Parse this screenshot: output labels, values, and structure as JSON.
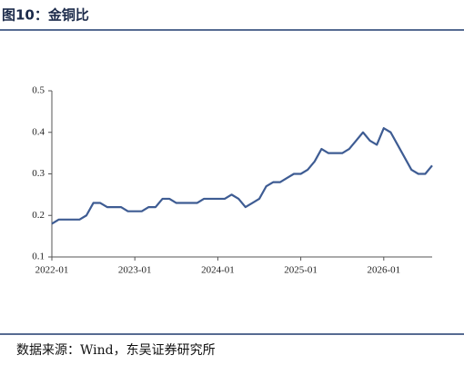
{
  "chart_data": {
    "type": "line",
    "title": "图10：金铜比",
    "source": "数据来源：Wind，东吴证券研究所",
    "x": [
      "2022-01",
      "2022-02",
      "2022-03",
      "2022-04",
      "2022-05",
      "2022-06",
      "2022-07",
      "2022-08",
      "2022-09",
      "2022-10",
      "2022-11",
      "2022-12",
      "2023-01",
      "2023-02",
      "2023-03",
      "2023-04",
      "2023-05",
      "2023-06",
      "2023-07",
      "2023-08",
      "2023-09",
      "2023-10",
      "2023-11",
      "2023-12",
      "2024-01",
      "2024-02",
      "2024-03",
      "2024-04",
      "2024-05",
      "2024-06",
      "2024-07",
      "2024-08",
      "2024-09",
      "2024-10",
      "2024-11",
      "2024-12",
      "2025-01",
      "2025-02",
      "2025-03",
      "2025-04",
      "2025-05",
      "2025-06",
      "2025-07",
      "2025-08",
      "2025-09",
      "2025-10",
      "2025-11",
      "2025-12",
      "2026-01",
      "2026-02",
      "2026-03",
      "2026-04",
      "2026-05",
      "2026-06",
      "2026-07",
      "2026-08"
    ],
    "values": [
      0.18,
      0.19,
      0.19,
      0.19,
      0.19,
      0.2,
      0.23,
      0.23,
      0.22,
      0.22,
      0.22,
      0.21,
      0.21,
      0.21,
      0.22,
      0.22,
      0.24,
      0.24,
      0.23,
      0.23,
      0.23,
      0.23,
      0.24,
      0.24,
      0.24,
      0.24,
      0.25,
      0.24,
      0.22,
      0.23,
      0.24,
      0.27,
      0.28,
      0.28,
      0.29,
      0.3,
      0.3,
      0.31,
      0.33,
      0.36,
      0.35,
      0.35,
      0.35,
      0.36,
      0.38,
      0.4,
      0.38,
      0.37,
      0.41,
      0.4,
      0.37,
      0.34,
      0.31,
      0.3,
      0.3,
      0.32
    ],
    "color": "#3e5c93",
    "xlim": [
      "2022-01",
      "2026-08"
    ],
    "xticks": [
      "2022-01",
      "2023-01",
      "2024-01",
      "2025-01",
      "2026-01"
    ],
    "ylim": [
      0.1,
      0.5
    ],
    "yticks": [
      0.1,
      0.2,
      0.3,
      0.4,
      0.5
    ],
    "grid": false
  }
}
